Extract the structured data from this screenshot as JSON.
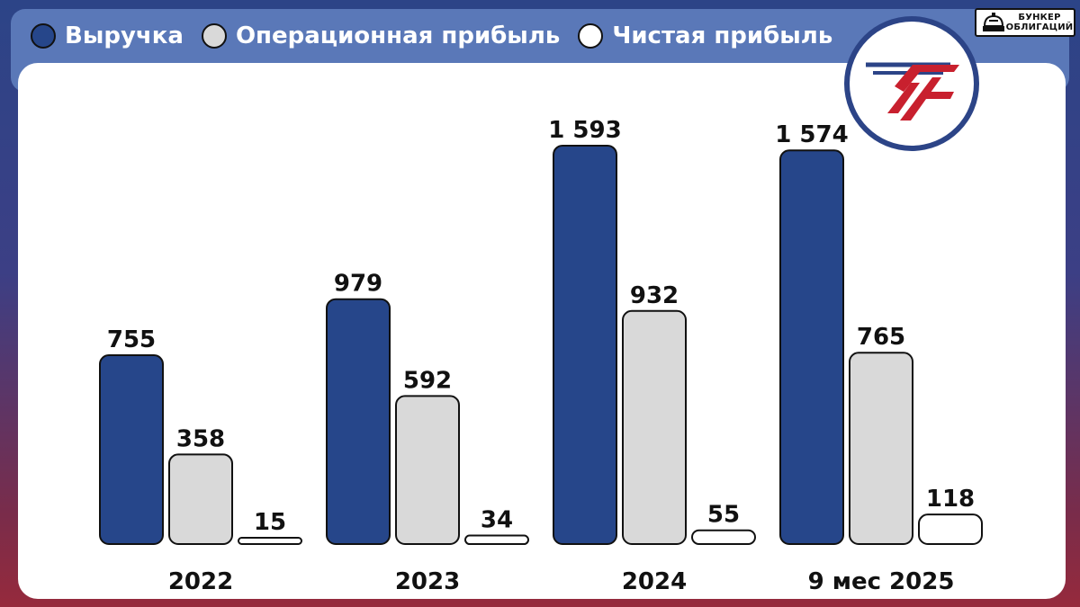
{
  "legend": [
    {
      "label": "Выручка",
      "color": "#26468a"
    },
    {
      "label": "Операционная прибыль",
      "color": "#d9d9d9"
    },
    {
      "label": "Чистая прибыль",
      "color": "#ffffff"
    }
  ],
  "badge": {
    "line1": "БУНКЕР",
    "line2": "ОБЛИГАЦИЙ"
  },
  "chart_data": {
    "type": "bar",
    "categories": [
      "2022",
      "2023",
      "2024",
      "9 мес 2025"
    ],
    "series": [
      {
        "name": "Выручка",
        "values": [
          755,
          979,
          1593,
          1574
        ],
        "labels": [
          "755",
          "979",
          "1 593",
          "1 574"
        ],
        "color": "#26468a"
      },
      {
        "name": "Операционная прибыль",
        "values": [
          358,
          592,
          932,
          765
        ],
        "labels": [
          "358",
          "592",
          "932",
          "765"
        ],
        "color": "#d9d9d9"
      },
      {
        "name": "Чистая прибыль",
        "values": [
          15,
          34,
          55,
          118
        ],
        "labels": [
          "15",
          "34",
          "55",
          "118"
        ],
        "color": "#ffffff"
      }
    ],
    "title": "",
    "xlabel": "",
    "ylabel": "",
    "ylim": [
      0,
      1600
    ],
    "grid": false,
    "legend_position": "top-left"
  }
}
